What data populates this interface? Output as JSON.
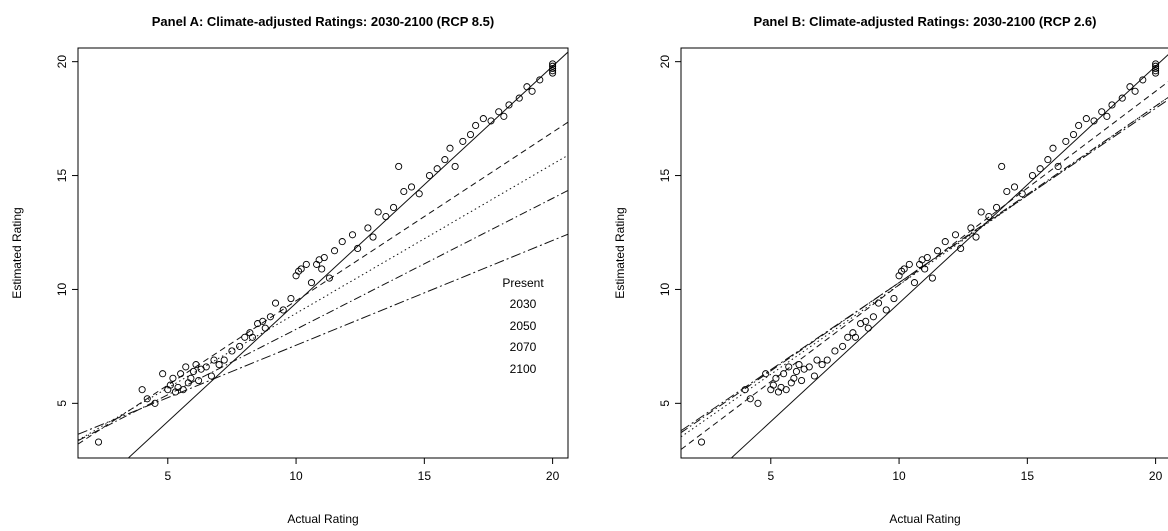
{
  "chart_data": [
    {
      "type": "scatter",
      "title": "Panel A: Climate-adjusted Ratings: 2030-2100 (RCP 8.5)",
      "xlabel": "Actual Rating",
      "ylabel": "Estimated Rating",
      "xlim": [
        1.5,
        20.6
      ],
      "ylim": [
        2.6,
        20.6
      ],
      "xticks": [
        "5",
        "10",
        "15",
        "20"
      ],
      "yticks": [
        "5",
        "10",
        "15",
        "20"
      ],
      "grid": false,
      "legend": {
        "placement": "right",
        "entries": [
          "Present",
          "2030",
          "2050",
          "2070",
          "2100"
        ]
      },
      "points": [
        [
          2.3,
          3.3
        ],
        [
          4,
          5.6
        ],
        [
          4.2,
          5.2
        ],
        [
          4.5,
          5
        ],
        [
          4.8,
          6.3
        ],
        [
          5,
          5.6
        ],
        [
          5.1,
          5.8
        ],
        [
          5.2,
          6.1
        ],
        [
          5.3,
          5.5
        ],
        [
          5.4,
          5.7
        ],
        [
          5.5,
          6.3
        ],
        [
          5.6,
          5.6
        ],
        [
          5.7,
          6.6
        ],
        [
          5.8,
          5.9
        ],
        [
          5.9,
          6.1
        ],
        [
          6,
          6.4
        ],
        [
          6.1,
          6.7
        ],
        [
          6.2,
          6
        ],
        [
          6.3,
          6.5
        ],
        [
          6.5,
          6.6
        ],
        [
          6.7,
          6.2
        ],
        [
          6.8,
          6.9
        ],
        [
          7,
          6.7
        ],
        [
          7.2,
          6.9
        ],
        [
          7.5,
          7.3
        ],
        [
          7.8,
          7.5
        ],
        [
          8,
          7.9
        ],
        [
          8.2,
          8.1
        ],
        [
          8.3,
          7.9
        ],
        [
          8.5,
          8.5
        ],
        [
          8.7,
          8.6
        ],
        [
          8.8,
          8.3
        ],
        [
          9,
          8.8
        ],
        [
          9.2,
          9.4
        ],
        [
          9.5,
          9.1
        ],
        [
          9.8,
          9.6
        ],
        [
          10,
          10.6
        ],
        [
          10.1,
          10.8
        ],
        [
          10.2,
          10.9
        ],
        [
          10.4,
          11.1
        ],
        [
          10.6,
          10.3
        ],
        [
          10.8,
          11.1
        ],
        [
          10.9,
          11.3
        ],
        [
          11,
          10.9
        ],
        [
          11.1,
          11.4
        ],
        [
          11.3,
          10.5
        ],
        [
          11.5,
          11.7
        ],
        [
          11.8,
          12.1
        ],
        [
          12.2,
          12.4
        ],
        [
          12.4,
          11.8
        ],
        [
          12.8,
          12.7
        ],
        [
          13,
          12.3
        ],
        [
          13.2,
          13.4
        ],
        [
          13.5,
          13.2
        ],
        [
          13.8,
          13.6
        ],
        [
          14,
          15.4
        ],
        [
          14.2,
          14.3
        ],
        [
          14.5,
          14.5
        ],
        [
          14.8,
          14.2
        ],
        [
          15.2,
          15
        ],
        [
          15.5,
          15.3
        ],
        [
          15.8,
          15.7
        ],
        [
          16,
          16.2
        ],
        [
          16.2,
          15.4
        ],
        [
          16.5,
          16.5
        ],
        [
          16.8,
          16.8
        ],
        [
          17,
          17.2
        ],
        [
          17.3,
          17.5
        ],
        [
          17.6,
          17.4
        ],
        [
          17.9,
          17.8
        ],
        [
          18.1,
          17.6
        ],
        [
          18.3,
          18.1
        ],
        [
          18.7,
          18.4
        ],
        [
          19,
          18.9
        ],
        [
          19.2,
          18.7
        ],
        [
          19.5,
          19.2
        ],
        [
          20,
          19.5
        ],
        [
          20,
          19.6
        ],
        [
          20,
          19.7
        ],
        [
          20,
          19.8
        ],
        [
          20,
          19.9
        ]
      ],
      "lines": [
        {
          "name": "Present",
          "intercept": -1.0,
          "slope": 1.04,
          "dash": ""
        },
        {
          "name": "2030",
          "intercept": 2.1,
          "slope": 0.74,
          "dash": "6,4"
        },
        {
          "name": "2050",
          "intercept": 2.4,
          "slope": 0.655,
          "dash": "1.5,3"
        },
        {
          "name": "2070",
          "intercept": 2.5,
          "slope": 0.575,
          "dash": "8,3,1.5,3"
        },
        {
          "name": "2100",
          "intercept": 2.95,
          "slope": 0.46,
          "dash": "10,3,2,3"
        }
      ]
    },
    {
      "type": "scatter",
      "title": "Panel B: Climate-adjusted Ratings: 2030-2100 (RCP 2.6)",
      "xlabel": "Actual Rating",
      "ylabel": "Estimated Rating",
      "xlim": [
        1.5,
        20.6
      ],
      "ylim": [
        2.6,
        20.6
      ],
      "xticks": [
        "5",
        "10",
        "15",
        "20"
      ],
      "yticks": [
        "5",
        "10",
        "15",
        "20"
      ],
      "grid": false,
      "points": [
        [
          2.3,
          3.3
        ],
        [
          4,
          5.6
        ],
        [
          4.2,
          5.2
        ],
        [
          4.5,
          5
        ],
        [
          4.8,
          6.3
        ],
        [
          5,
          5.6
        ],
        [
          5.1,
          5.8
        ],
        [
          5.2,
          6.1
        ],
        [
          5.3,
          5.5
        ],
        [
          5.4,
          5.7
        ],
        [
          5.5,
          6.3
        ],
        [
          5.6,
          5.6
        ],
        [
          5.7,
          6.6
        ],
        [
          5.8,
          5.9
        ],
        [
          5.9,
          6.1
        ],
        [
          6,
          6.4
        ],
        [
          6.1,
          6.7
        ],
        [
          6.2,
          6
        ],
        [
          6.3,
          6.5
        ],
        [
          6.5,
          6.6
        ],
        [
          6.7,
          6.2
        ],
        [
          6.8,
          6.9
        ],
        [
          7,
          6.7
        ],
        [
          7.2,
          6.9
        ],
        [
          7.5,
          7.3
        ],
        [
          7.8,
          7.5
        ],
        [
          8,
          7.9
        ],
        [
          8.2,
          8.1
        ],
        [
          8.3,
          7.9
        ],
        [
          8.5,
          8.5
        ],
        [
          8.7,
          8.6
        ],
        [
          8.8,
          8.3
        ],
        [
          9,
          8.8
        ],
        [
          9.2,
          9.4
        ],
        [
          9.5,
          9.1
        ],
        [
          9.8,
          9.6
        ],
        [
          10,
          10.6
        ],
        [
          10.1,
          10.8
        ],
        [
          10.2,
          10.9
        ],
        [
          10.4,
          11.1
        ],
        [
          10.6,
          10.3
        ],
        [
          10.8,
          11.1
        ],
        [
          10.9,
          11.3
        ],
        [
          11,
          10.9
        ],
        [
          11.1,
          11.4
        ],
        [
          11.3,
          10.5
        ],
        [
          11.5,
          11.7
        ],
        [
          11.8,
          12.1
        ],
        [
          12.2,
          12.4
        ],
        [
          12.4,
          11.8
        ],
        [
          12.8,
          12.7
        ],
        [
          13,
          12.3
        ],
        [
          13.2,
          13.4
        ],
        [
          13.5,
          13.2
        ],
        [
          13.8,
          13.6
        ],
        [
          14,
          15.4
        ],
        [
          14.2,
          14.3
        ],
        [
          14.5,
          14.5
        ],
        [
          14.8,
          14.2
        ],
        [
          15.2,
          15
        ],
        [
          15.5,
          15.3
        ],
        [
          15.8,
          15.7
        ],
        [
          16,
          16.2
        ],
        [
          16.2,
          15.4
        ],
        [
          16.5,
          16.5
        ],
        [
          16.8,
          16.8
        ],
        [
          17,
          17.2
        ],
        [
          17.3,
          17.5
        ],
        [
          17.6,
          17.4
        ],
        [
          17.9,
          17.8
        ],
        [
          18.1,
          17.6
        ],
        [
          18.3,
          18.1
        ],
        [
          18.7,
          18.4
        ],
        [
          19,
          18.9
        ],
        [
          19.2,
          18.7
        ],
        [
          19.5,
          19.2
        ],
        [
          20,
          19.5
        ],
        [
          20,
          19.6
        ],
        [
          20,
          19.7
        ],
        [
          20,
          19.8
        ],
        [
          20,
          19.9
        ]
      ],
      "lines": [
        {
          "name": "Present",
          "intercept": -1.0,
          "slope": 1.04,
          "dash": ""
        },
        {
          "name": "2030",
          "intercept": 1.7,
          "slope": 0.85,
          "dash": "6,4"
        },
        {
          "name": "2050",
          "intercept": 2.35,
          "slope": 0.785,
          "dash": "1.5,3"
        },
        {
          "name": "2070",
          "intercept": 2.55,
          "slope": 0.775,
          "dash": "8,3,1.5,3"
        },
        {
          "name": "2100",
          "intercept": 2.65,
          "slope": 0.765,
          "dash": "10,3,2,3"
        }
      ]
    }
  ]
}
